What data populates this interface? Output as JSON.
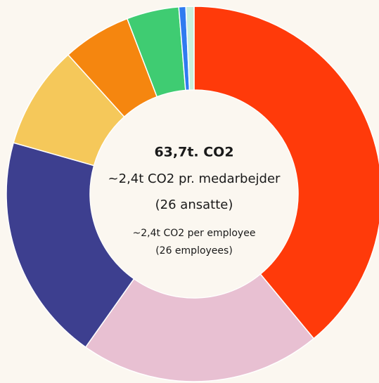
{
  "chart_data": {
    "type": "donut",
    "title": "63,7t. CO2",
    "annotations": [
      "~2,4t  CO2 pr. medarbejder",
      "(26 ansatte)",
      "~2,4t CO2 per employee",
      "(26 employees)"
    ],
    "values": [
      39,
      20.8,
      19.6,
      8.9,
      5.9,
      4.5,
      0.6,
      0.7
    ],
    "colors": [
      "#ff3a0a",
      "#e8c0d2",
      "#3d3f8f",
      "#f5c85a",
      "#f5860f",
      "#3fcc72",
      "#2f7bf0",
      "#c9efdc"
    ]
  }
}
